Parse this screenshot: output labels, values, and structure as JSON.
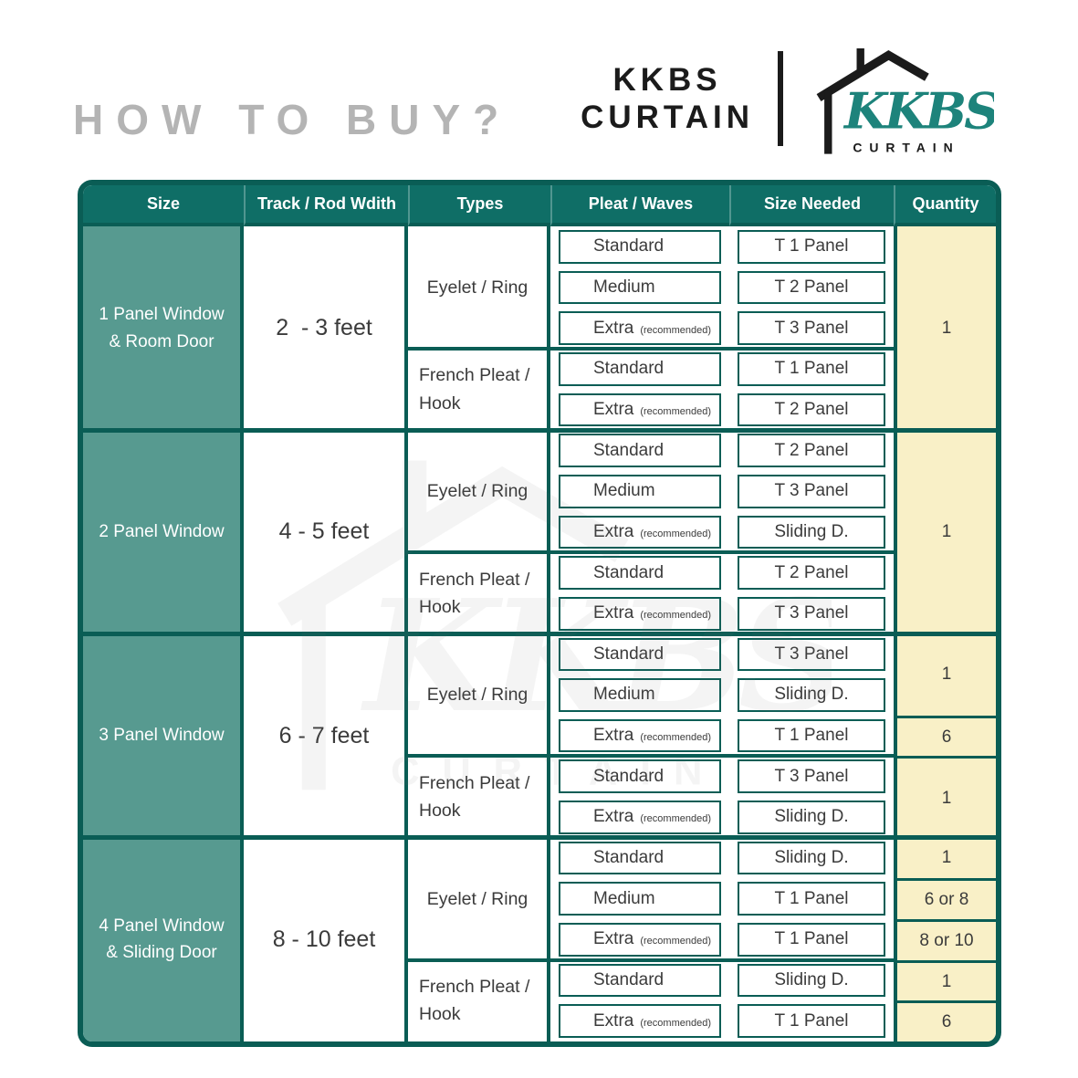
{
  "title": "HOW TO BUY?",
  "brand": {
    "wordmark": [
      "KKBS",
      "CURTAIN"
    ],
    "logo": {
      "script": "KKBS",
      "subtext": "CURTAIN"
    }
  },
  "watermark": {
    "script": "KKBS",
    "subtext": "CURTAIN"
  },
  "colors": {
    "header_bg": "#0f6e66",
    "size_column_bg": "#579a90",
    "grid_line": "#0a5d55",
    "quantity_bg": "#f9f0c7",
    "title_gray": "#b4b4b4",
    "logo_teal": "#1d837b",
    "ink": "#1b1b1b",
    "body_text": "#3b3b3b"
  },
  "table": {
    "headers": [
      "Size",
      "Track / Rod Wdith",
      "Types",
      "Pleat / Waves",
      "Size Needed",
      "Quantity"
    ],
    "recommended_note": "(recommended)",
    "groups": [
      {
        "size_lines": [
          "1 Panel Window",
          "& Room Door"
        ],
        "track_width": "2  - 3 feet",
        "types": [
          {
            "label": "Eyelet / Ring",
            "rows": [
              {
                "pleat": "Standard",
                "recommended": false,
                "size_needed": "T 1 Panel"
              },
              {
                "pleat": "Medium",
                "recommended": false,
                "size_needed": "T 2 Panel"
              },
              {
                "pleat": "Extra",
                "recommended": true,
                "size_needed": "T 3 Panel"
              }
            ]
          },
          {
            "label": "French Pleat / Hook",
            "rows": [
              {
                "pleat": "Standard",
                "recommended": false,
                "size_needed": "T 1 Panel"
              },
              {
                "pleat": "Extra",
                "recommended": true,
                "size_needed": "T 2 Panel"
              }
            ]
          }
        ],
        "quantities": [
          {
            "value": "1",
            "span": 5
          }
        ]
      },
      {
        "size_lines": [
          "2 Panel Window"
        ],
        "track_width": "4 - 5 feet",
        "types": [
          {
            "label": "Eyelet / Ring",
            "rows": [
              {
                "pleat": "Standard",
                "recommended": false,
                "size_needed": "T 2 Panel"
              },
              {
                "pleat": "Medium",
                "recommended": false,
                "size_needed": "T 3 Panel"
              },
              {
                "pleat": "Extra",
                "recommended": true,
                "size_needed": "Sliding D."
              }
            ]
          },
          {
            "label": "French Pleat / Hook",
            "rows": [
              {
                "pleat": "Standard",
                "recommended": false,
                "size_needed": "T 2 Panel"
              },
              {
                "pleat": "Extra",
                "recommended": true,
                "size_needed": "T 3 Panel"
              }
            ]
          }
        ],
        "quantities": [
          {
            "value": "1",
            "span": 5
          }
        ]
      },
      {
        "size_lines": [
          "3 Panel Window"
        ],
        "track_width": "6 - 7 feet",
        "types": [
          {
            "label": "Eyelet / Ring",
            "rows": [
              {
                "pleat": "Standard",
                "recommended": false,
                "size_needed": "T 3 Panel"
              },
              {
                "pleat": "Medium",
                "recommended": false,
                "size_needed": "Sliding D."
              },
              {
                "pleat": "Extra",
                "recommended": true,
                "size_needed": "T 1 Panel"
              }
            ]
          },
          {
            "label": "French Pleat / Hook",
            "rows": [
              {
                "pleat": "Standard",
                "recommended": false,
                "size_needed": "T 3 Panel"
              },
              {
                "pleat": "Extra",
                "recommended": true,
                "size_needed": "Sliding D."
              }
            ]
          }
        ],
        "quantities": [
          {
            "value": "1",
            "span": 2
          },
          {
            "value": "6",
            "span": 1
          },
          {
            "value": "1",
            "span": 2
          }
        ]
      },
      {
        "size_lines": [
          "4 Panel Window",
          "& Sliding Door"
        ],
        "track_width": "8 - 10 feet",
        "types": [
          {
            "label": "Eyelet / Ring",
            "rows": [
              {
                "pleat": "Standard",
                "recommended": false,
                "size_needed": "Sliding D."
              },
              {
                "pleat": "Medium",
                "recommended": false,
                "size_needed": "T 1 Panel"
              },
              {
                "pleat": "Extra",
                "recommended": true,
                "size_needed": "T 1 Panel"
              }
            ]
          },
          {
            "label": "French Pleat / Hook",
            "rows": [
              {
                "pleat": "Standard",
                "recommended": false,
                "size_needed": "Sliding D."
              },
              {
                "pleat": "Extra",
                "recommended": true,
                "size_needed": "T 1 Panel"
              }
            ]
          }
        ],
        "quantities": [
          {
            "value": "1",
            "span": 1
          },
          {
            "value": "6 or 8",
            "span": 1
          },
          {
            "value": "8 or 10",
            "span": 1
          },
          {
            "value": "1",
            "span": 1
          },
          {
            "value": "6",
            "span": 1
          }
        ]
      }
    ]
  }
}
